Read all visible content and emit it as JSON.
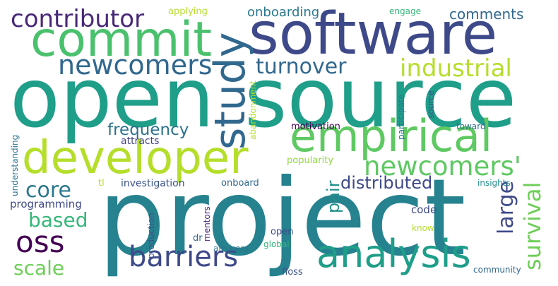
{
  "words": [
    {
      "text": "project",
      "color": "#26828e"
    },
    {
      "text": "open",
      "color": "#1f9e89"
    },
    {
      "text": "source",
      "color": "#1f9e89"
    },
    {
      "text": "software",
      "color": "#3e4989"
    },
    {
      "text": "commit",
      "color": "#4ac16d"
    },
    {
      "text": "developer",
      "color": "#b5de2b"
    },
    {
      "text": "study",
      "color": "#31688e"
    },
    {
      "text": "empirical",
      "color": "#5ec962"
    },
    {
      "text": "analysis",
      "color": "#1f9e89"
    },
    {
      "text": "newcomers",
      "color": "#31688e"
    },
    {
      "text": "contributor",
      "color": "#482878"
    },
    {
      "text": "barriers",
      "color": "#3e4989"
    },
    {
      "text": "newcomers'",
      "color": "#5ec962"
    },
    {
      "text": "industrial",
      "color": "#b5de2b"
    },
    {
      "text": "turnover",
      "color": "#31688e"
    },
    {
      "text": "oss",
      "color": "#440154"
    },
    {
      "text": "core",
      "color": "#2a788e"
    },
    {
      "text": "based",
      "color": "#35b779"
    },
    {
      "text": "scale",
      "color": "#6ece58"
    },
    {
      "text": "survival",
      "color": "#6ece58"
    },
    {
      "text": "large",
      "color": "#3e4989"
    },
    {
      "text": "distributed",
      "color": "#3e4989"
    },
    {
      "text": "frequency",
      "color": "#2c728e"
    },
    {
      "text": "pair",
      "color": "#21918c"
    },
    {
      "text": "comments",
      "color": "#31688e"
    },
    {
      "text": "onboarding",
      "color": "#2a788e"
    },
    {
      "text": "programming",
      "color": "#3e4989"
    },
    {
      "text": "applying",
      "color": "#b5de2b"
    },
    {
      "text": "engage",
      "color": "#35b779"
    },
    {
      "text": "understanding",
      "color": "#2c728e"
    },
    {
      "text": "attracts",
      "color": "#414487"
    },
    {
      "text": "investigation",
      "color": "#3b528b"
    },
    {
      "text": "motivation",
      "color": "#440154"
    },
    {
      "text": "popularity",
      "color": "#90d743"
    },
    {
      "text": "abandonment",
      "color": "#b5de2b"
    },
    {
      "text": "participate",
      "color": "#2a788e"
    },
    {
      "text": "source",
      "color": "#3b528b"
    },
    {
      "text": "toward",
      "color": "#2c728e"
    },
    {
      "text": "insights",
      "color": "#21918c"
    },
    {
      "text": "code",
      "color": "#3e4989"
    },
    {
      "text": "know",
      "color": "#b5de2b"
    },
    {
      "text": "open",
      "color": "#3e4989"
    },
    {
      "text": "global",
      "color": "#35b779"
    },
    {
      "text": "answers",
      "color": "#2c728e"
    },
    {
      "text": "floss",
      "color": "#3b528b"
    },
    {
      "text": "community",
      "color": "#31688e"
    },
    {
      "text": "production",
      "color": "#3b528b"
    },
    {
      "text": "mentors",
      "color": "#482878"
    },
    {
      "text": "onboard",
      "color": "#31688e"
    },
    {
      "text": "dr",
      "color": "#31688e"
    },
    {
      "text": "tl",
      "color": "#b5de2b"
    }
  ]
}
